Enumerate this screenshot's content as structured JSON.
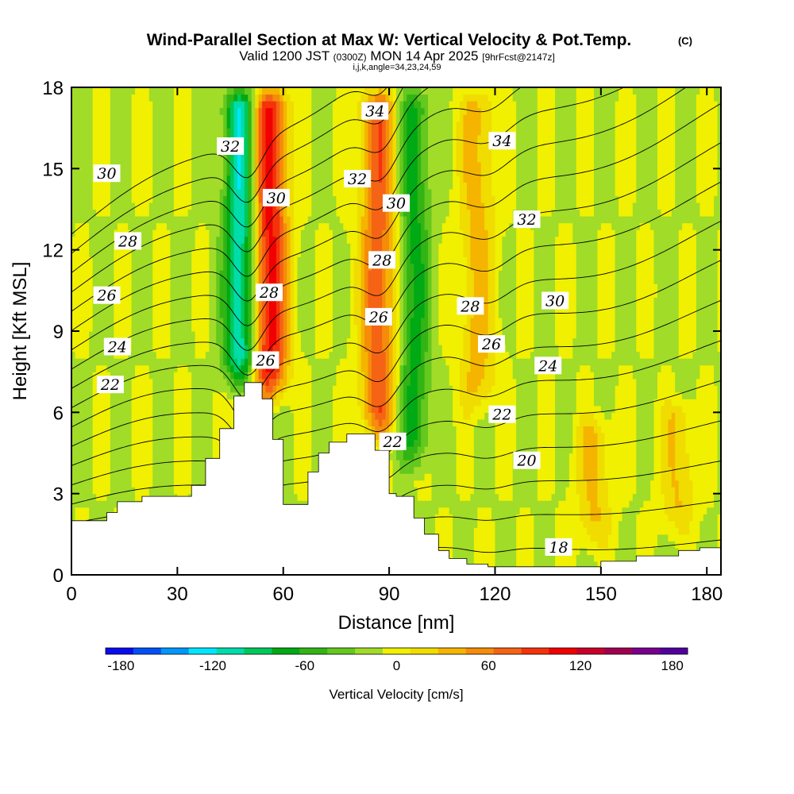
{
  "title": {
    "main": "Wind-Parallel Section at Max W: Vertical Velocity & Pot.Temp.",
    "main_mark": "(C)",
    "valid_prefix": "Valid 1200 JST",
    "valid_small": "(0300Z)",
    "valid_date": "MON 14 Apr 2025",
    "forecast": "[9hrFcst@2147z]",
    "indices": "i,j,k,angle=34,23,24,59"
  },
  "chart_data": {
    "type": "heatmap",
    "xlabel": "Distance [nm]",
    "ylabel": "Height [Kft MSL]",
    "xlim": [
      0,
      184
    ],
    "ylim": [
      0,
      18
    ],
    "x_ticks": [
      0,
      30,
      60,
      90,
      120,
      150,
      180
    ],
    "y_ticks": [
      0,
      3,
      6,
      9,
      12,
      15,
      18
    ],
    "terrain_profile": {
      "x": [
        0,
        6,
        10,
        13,
        20,
        29,
        34,
        38,
        42,
        46,
        49,
        54,
        57,
        60,
        63,
        67,
        70,
        73,
        78,
        83,
        86,
        90,
        92,
        97,
        100,
        104,
        107,
        112,
        118,
        140,
        150,
        160,
        166,
        172,
        178,
        184
      ],
      "height": [
        2.0,
        2.0,
        2.3,
        2.7,
        2.9,
        2.9,
        3.3,
        4.3,
        5.4,
        6.6,
        7.1,
        6.5,
        5.0,
        2.6,
        2.6,
        3.8,
        4.5,
        4.9,
        5.2,
        5.2,
        4.6,
        3.0,
        2.9,
        2.1,
        1.5,
        0.9,
        0.6,
        0.4,
        0.3,
        0.3,
        0.5,
        0.7,
        0.7,
        0.9,
        1.0,
        1.0
      ]
    },
    "vertical_velocity_features": [
      {
        "kind": "downdraft",
        "x": 48,
        "bottom": 7.0,
        "top": 18,
        "w": -110
      },
      {
        "kind": "updraft",
        "x": 56,
        "bottom": 6.5,
        "top": 18,
        "w": 120
      },
      {
        "kind": "updraft",
        "x": 87,
        "bottom": 5.0,
        "top": 18,
        "w": 85
      },
      {
        "kind": "downdraft",
        "x": 97,
        "bottom": 4.0,
        "top": 18,
        "w": -60
      },
      {
        "kind": "updraft",
        "x": 115,
        "bottom": 6.0,
        "top": 18,
        "w": 45
      },
      {
        "kind": "updraft",
        "x": 148,
        "bottom": 1.0,
        "top": 6.0,
        "w": 40
      },
      {
        "kind": "updraft",
        "x": 172,
        "bottom": 1.5,
        "top": 6.5,
        "w": 38
      }
    ],
    "theta_contour_interval": 1,
    "theta_contour_range": [
      18,
      35
    ],
    "contour_labels": [
      {
        "text": "22",
        "x": 11,
        "y": 7.0
      },
      {
        "text": "24",
        "x": 13,
        "y": 8.4
      },
      {
        "text": "26",
        "x": 10,
        "y": 10.3
      },
      {
        "text": "28",
        "x": 16,
        "y": 12.3
      },
      {
        "text": "30",
        "x": 10,
        "y": 14.8
      },
      {
        "text": "32",
        "x": 45,
        "y": 15.8
      },
      {
        "text": "30",
        "x": 58,
        "y": 13.9
      },
      {
        "text": "28",
        "x": 56,
        "y": 10.4
      },
      {
        "text": "26",
        "x": 55,
        "y": 7.9
      },
      {
        "text": "34",
        "x": 86,
        "y": 17.1
      },
      {
        "text": "32",
        "x": 81,
        "y": 14.6
      },
      {
        "text": "30",
        "x": 92,
        "y": 13.7
      },
      {
        "text": "28",
        "x": 88,
        "y": 11.6
      },
      {
        "text": "26",
        "x": 87,
        "y": 9.5
      },
      {
        "text": "22",
        "x": 91,
        "y": 4.9
      },
      {
        "text": "34",
        "x": 122,
        "y": 16.0
      },
      {
        "text": "32",
        "x": 129,
        "y": 13.1
      },
      {
        "text": "30",
        "x": 137,
        "y": 10.1
      },
      {
        "text": "28",
        "x": 113,
        "y": 9.9
      },
      {
        "text": "26",
        "x": 119,
        "y": 8.5
      },
      {
        "text": "24",
        "x": 135,
        "y": 7.7
      },
      {
        "text": "22",
        "x": 122,
        "y": 5.9
      },
      {
        "text": "20",
        "x": 129,
        "y": 4.2
      },
      {
        "text": "18",
        "x": 138,
        "y": 1.0
      }
    ],
    "colorbar": {
      "label": "Vertical Velocity [cm/s]",
      "tick_labels": [
        -180,
        -120,
        -60,
        0,
        60,
        120,
        180
      ],
      "min": -190,
      "max": 190,
      "colors": [
        "#0a0af0",
        "#0050f5",
        "#0096fa",
        "#00e6ff",
        "#00dcaa",
        "#00c85a",
        "#00aa14",
        "#32b414",
        "#64c81e",
        "#a0dc28",
        "#f0f000",
        "#f0dc00",
        "#f5b400",
        "#f58c0a",
        "#f56414",
        "#f5320a",
        "#f00000",
        "#c80028",
        "#a00050",
        "#78008c",
        "#50009b"
      ]
    }
  }
}
